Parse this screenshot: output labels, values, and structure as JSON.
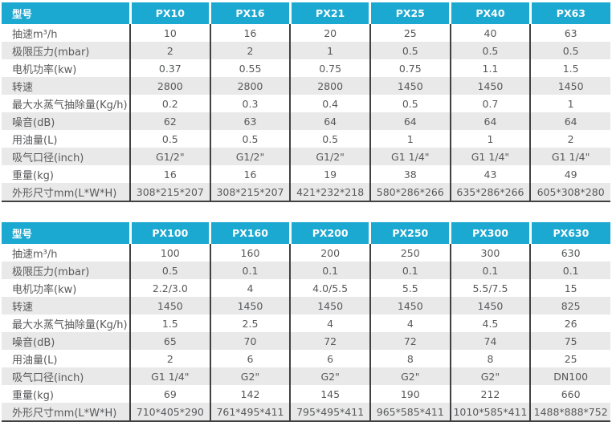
{
  "colors": {
    "header_bg": "#1BA8D1",
    "header_text": "#FFFFFF",
    "stripe_bg": "#E9E9E9",
    "white_bg": "#FFFFFF",
    "divider": "#414042",
    "text": "#58595B"
  },
  "tables": [
    {
      "columns": [
        "型号",
        "PX10",
        "PX16",
        "PX21",
        "PX25",
        "PX40",
        "PX63"
      ],
      "rows": [
        {
          "label": "抽速m³/h",
          "values": [
            "10",
            "16",
            "20",
            "25",
            "40",
            "63"
          ]
        },
        {
          "label": "极限压力(mbar)",
          "values": [
            "2",
            "2",
            "1",
            "0.5",
            "0.5",
            "0.5"
          ]
        },
        {
          "label": "电机功率(kw)",
          "values": [
            "0.37",
            "0.55",
            "0.75",
            "0.75",
            "1.1",
            "1.5"
          ]
        },
        {
          "label": "转速",
          "values": [
            "2800",
            "2800",
            "2800",
            "1450",
            "1450",
            "1450"
          ]
        },
        {
          "label": "最大水蒸气抽除量(Kg/h)",
          "values": [
            "0.2",
            "0.3",
            "0.4",
            "0.5",
            "0.7",
            "1"
          ]
        },
        {
          "label": "噪音(dB)",
          "values": [
            "62",
            "63",
            "64",
            "64",
            "64",
            "64"
          ]
        },
        {
          "label": "用油量(L)",
          "values": [
            "0.5",
            "0.5",
            "0.5",
            "1",
            "1",
            "2"
          ]
        },
        {
          "label": "吸气口径(inch)",
          "values": [
            "G1/2\"",
            "G1/2\"",
            "G1/2\"",
            "G1 1/4\"",
            "G1 1/4\"",
            "G1 1/4\""
          ]
        },
        {
          "label": "重量(kg)",
          "values": [
            "16",
            "16",
            "19",
            "38",
            "43",
            "49"
          ]
        },
        {
          "label": "外形尺寸mm(L*W*H)",
          "values": [
            "308*215*207",
            "308*215*207",
            "421*232*218",
            "580*286*266",
            "635*286*266",
            "605*308*280"
          ]
        }
      ]
    },
    {
      "columns": [
        "型号",
        "PX100",
        "PX160",
        "PX200",
        "PX250",
        "PX300",
        "PX630"
      ],
      "rows": [
        {
          "label": "抽速m³/h",
          "values": [
            "100",
            "160",
            "200",
            "250",
            "300",
            "630"
          ]
        },
        {
          "label": "极限压力(mbar)",
          "values": [
            "0.5",
            "0.1",
            "0.1",
            "0.1",
            "0.1",
            "0.1"
          ]
        },
        {
          "label": "电机功率(kw)",
          "values": [
            "2.2/3.0",
            "4",
            "4.0/5.5",
            "5.5",
            "5.5/7.5",
            "15"
          ]
        },
        {
          "label": "转速",
          "values": [
            "1450",
            "1450",
            "1450",
            "1450",
            "1450",
            "825"
          ]
        },
        {
          "label": "最大水蒸气抽除量(Kg/h)",
          "values": [
            "1.5",
            "2.5",
            "4",
            "4",
            "4.5",
            "26"
          ]
        },
        {
          "label": "噪音(dB)",
          "values": [
            "65",
            "70",
            "72",
            "72",
            "74",
            "75"
          ]
        },
        {
          "label": "用油量(L)",
          "values": [
            "2",
            "6",
            "6",
            "8",
            "8",
            "25"
          ]
        },
        {
          "label": "吸气口径(inch)",
          "values": [
            "G1 1/4\"",
            "G2\"",
            "G2\"",
            "G2\"",
            "G2\"",
            "DN100"
          ]
        },
        {
          "label": "重量(kg)",
          "values": [
            "69",
            "142",
            "145",
            "190",
            "212",
            "660"
          ]
        },
        {
          "label": "外形尺寸mm(L*W*H)",
          "values": [
            "710*405*290",
            "761*495*411",
            "795*495*411",
            "965*585*411",
            "1010*585*411",
            "1488*888*752"
          ]
        }
      ]
    }
  ]
}
